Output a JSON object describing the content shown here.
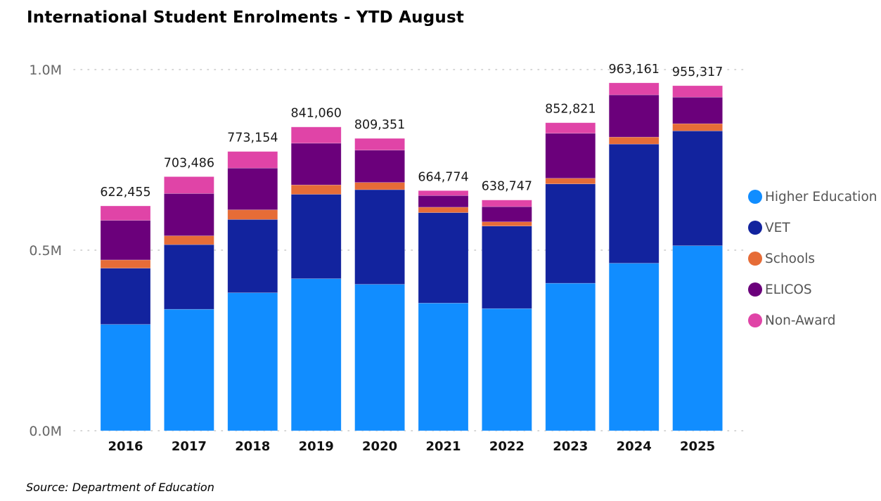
{
  "title": "International Student Enrolments - YTD August",
  "source": "Source: Department of Education",
  "chart_data": {
    "type": "bar",
    "stacked": true,
    "title": "International Student Enrolments - YTD August",
    "xlabel": "",
    "ylabel": "",
    "ylim": [
      0,
      1000000
    ],
    "yticks": [
      {
        "value": 0,
        "label": "0.0M"
      },
      {
        "value": 500000,
        "label": "0.5M"
      },
      {
        "value": 1000000,
        "label": "1.0M"
      }
    ],
    "grid": "dotted-horizontal",
    "legend_position": "right",
    "categories": [
      "2016",
      "2017",
      "2018",
      "2019",
      "2020",
      "2021",
      "2022",
      "2023",
      "2024",
      "2025"
    ],
    "totals": [
      622455,
      703486,
      773154,
      841060,
      809351,
      664774,
      638747,
      852821,
      963161,
      955317
    ],
    "total_labels": [
      "622,455",
      "703,486",
      "773,154",
      "841,060",
      "809,351",
      "664,774",
      "638,747",
      "852,821",
      "963,161",
      "955,317"
    ],
    "series": [
      {
        "name": "Higher Education",
        "color": "#118DFF",
        "values": [
          294400,
          336300,
          382000,
          421000,
          405400,
          353400,
          338200,
          408400,
          463800,
          512300
        ]
      },
      {
        "name": "VET",
        "color": "#12239E",
        "values": [
          155700,
          179000,
          203000,
          233600,
          262000,
          250500,
          228500,
          275000,
          329800,
          317900
        ]
      },
      {
        "name": "Schools",
        "color": "#E66C37",
        "values": [
          22800,
          24500,
          26700,
          26000,
          20000,
          15000,
          11700,
          15600,
          19500,
          20000
        ]
      },
      {
        "name": "ELICOS",
        "color": "#6B007B",
        "values": [
          109600,
          117000,
          115500,
          115500,
          89500,
          32300,
          42000,
          124600,
          116800,
          73400
        ]
      },
      {
        "name": "Non-Award",
        "color": "#E044A7",
        "values": [
          39955,
          46686,
          45954,
          44960,
          32451,
          13574,
          18347,
          29221,
          33261,
          31717
        ]
      }
    ]
  }
}
